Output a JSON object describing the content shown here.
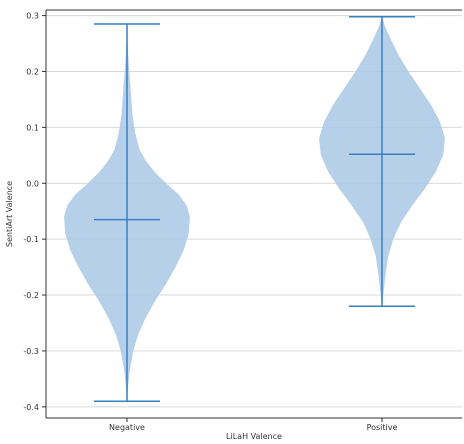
{
  "chart_data": {
    "type": "violin",
    "xlabel": "LiLaH Valence",
    "ylabel": "SentiArt Valence",
    "categories": [
      "Negative",
      "Positive"
    ],
    "ylim": [
      -0.42,
      0.31
    ],
    "yticks": [
      -0.4,
      -0.3,
      -0.2,
      -0.1,
      0.0,
      0.1,
      0.2,
      0.3
    ],
    "ytick_labels": [
      "-0.4",
      "-0.3",
      "-0.2",
      "-0.1",
      "0.0",
      "0.1",
      "0.2",
      "0.3"
    ],
    "grid": "horizontal",
    "colors": {
      "body": "#a9c8e6",
      "line": "#3a7fc0",
      "grid": "#d9d9d9",
      "axis": "#333333"
    },
    "series": [
      {
        "category": "Negative",
        "min": -0.39,
        "max": 0.285,
        "mean": -0.065,
        "density": [
          [
            -0.39,
            0.0
          ],
          [
            -0.36,
            0.02
          ],
          [
            -0.33,
            0.05
          ],
          [
            -0.3,
            0.1
          ],
          [
            -0.27,
            0.18
          ],
          [
            -0.24,
            0.3
          ],
          [
            -0.21,
            0.45
          ],
          [
            -0.18,
            0.62
          ],
          [
            -0.15,
            0.77
          ],
          [
            -0.12,
            0.9
          ],
          [
            -0.09,
            0.98
          ],
          [
            -0.06,
            1.0
          ],
          [
            -0.04,
            0.95
          ],
          [
            -0.02,
            0.82
          ],
          [
            0.0,
            0.62
          ],
          [
            0.02,
            0.44
          ],
          [
            0.04,
            0.3
          ],
          [
            0.06,
            0.2
          ],
          [
            0.09,
            0.13
          ],
          [
            0.12,
            0.09
          ],
          [
            0.15,
            0.07
          ],
          [
            0.18,
            0.05
          ],
          [
            0.21,
            0.03
          ],
          [
            0.24,
            0.015
          ],
          [
            0.27,
            0.005
          ],
          [
            0.285,
            0.0
          ]
        ]
      },
      {
        "category": "Positive",
        "min": -0.22,
        "max": 0.298,
        "mean": 0.052,
        "density": [
          [
            -0.22,
            0.0
          ],
          [
            -0.19,
            0.03
          ],
          [
            -0.16,
            0.06
          ],
          [
            -0.13,
            0.1
          ],
          [
            -0.1,
            0.18
          ],
          [
            -0.07,
            0.3
          ],
          [
            -0.04,
            0.48
          ],
          [
            -0.01,
            0.68
          ],
          [
            0.02,
            0.85
          ],
          [
            0.05,
            0.97
          ],
          [
            0.08,
            1.0
          ],
          [
            0.11,
            0.92
          ],
          [
            0.14,
            0.78
          ],
          [
            0.17,
            0.6
          ],
          [
            0.2,
            0.42
          ],
          [
            0.23,
            0.26
          ],
          [
            0.26,
            0.13
          ],
          [
            0.28,
            0.05
          ],
          [
            0.298,
            0.0
          ]
        ]
      }
    ]
  }
}
